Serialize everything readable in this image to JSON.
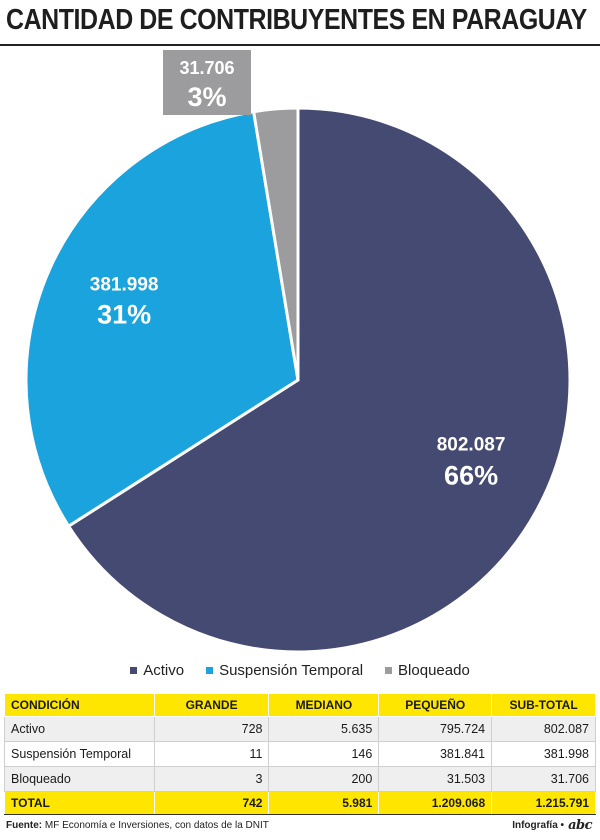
{
  "title": "CANTIDAD DE CONTRIBUYENTES EN PARAGUAY",
  "colors": {
    "activo": "#454a72",
    "suspension": "#1aa3dd",
    "bloqueado": "#9c9c9f",
    "highlight": "#ffe600"
  },
  "chart_data": {
    "type": "pie",
    "slices": [
      {
        "name": "Activo",
        "value": 802087,
        "value_label": "802.087",
        "percent_label": "66%",
        "color": "#454a72"
      },
      {
        "name": "Suspensión Temporal",
        "value": 381998,
        "value_label": "381.998",
        "percent_label": "31%",
        "color": "#1aa3dd"
      },
      {
        "name": "Bloqueado",
        "value": 31706,
        "value_label": "31.706",
        "percent_label": "3%",
        "color": "#9c9c9f"
      }
    ],
    "legend": [
      "Activo",
      "Suspensión Temporal",
      "Bloqueado"
    ],
    "legend_position": "bottom"
  },
  "table": {
    "headers": [
      "CONDICIÓN",
      "GRANDE",
      "MEDIANO",
      "PEQUEÑO",
      "SUB-TOTAL"
    ],
    "rows": [
      [
        "Activo",
        "728",
        "5.635",
        "795.724",
        "802.087"
      ],
      [
        "Suspensión Temporal",
        "11",
        "146",
        "381.841",
        "381.998"
      ],
      [
        "Bloqueado",
        "3",
        "200",
        "31.503",
        "31.706"
      ]
    ],
    "total": [
      "TOTAL",
      "742",
      "5.981",
      "1.209.068",
      "1.215.791"
    ]
  },
  "footer": {
    "source_label": "Fuente:",
    "source_text": " MF Economía e Inversiones, con datos de la DNIT",
    "credit_label": "Infografía •",
    "logo": "abc"
  }
}
